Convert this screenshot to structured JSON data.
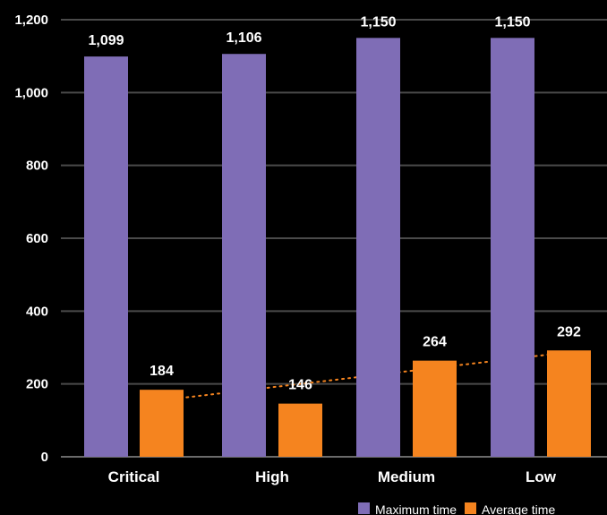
{
  "chart_data": {
    "type": "bar",
    "categories": [
      "Critical",
      "High",
      "Medium",
      "Low"
    ],
    "series": [
      {
        "name": "Maximum time",
        "values": [
          1099,
          1106,
          1150,
          1150
        ],
        "color": "#7f6db6"
      },
      {
        "name": "Average time",
        "values": [
          184,
          146,
          264,
          292
        ],
        "color": "#f5841f"
      }
    ],
    "value_labels": {
      "max": [
        "1,099",
        "1,106",
        "1,150",
        "1,150"
      ],
      "avg": [
        "184",
        "146",
        "264",
        "292"
      ]
    },
    "y_ticks": [
      {
        "value": 0,
        "label": "0"
      },
      {
        "value": 200,
        "label": "200"
      },
      {
        "value": 400,
        "label": "400"
      },
      {
        "value": 600,
        "label": "600"
      },
      {
        "value": 800,
        "label": "800"
      },
      {
        "value": 1000,
        "label": "1,000"
      },
      {
        "value": 1200,
        "label": "1,200"
      }
    ],
    "ylim": [
      0,
      1200
    ],
    "grid": true,
    "trendline": {
      "series": "Average time",
      "style": "dotted",
      "color": "#f5841f"
    },
    "legend": {
      "placement": "bottom-right"
    },
    "colors": {
      "background": "#000000",
      "grid": "#4a4a4a",
      "text": "#ffffff"
    },
    "title": "",
    "xlabel": "",
    "ylabel": ""
  }
}
